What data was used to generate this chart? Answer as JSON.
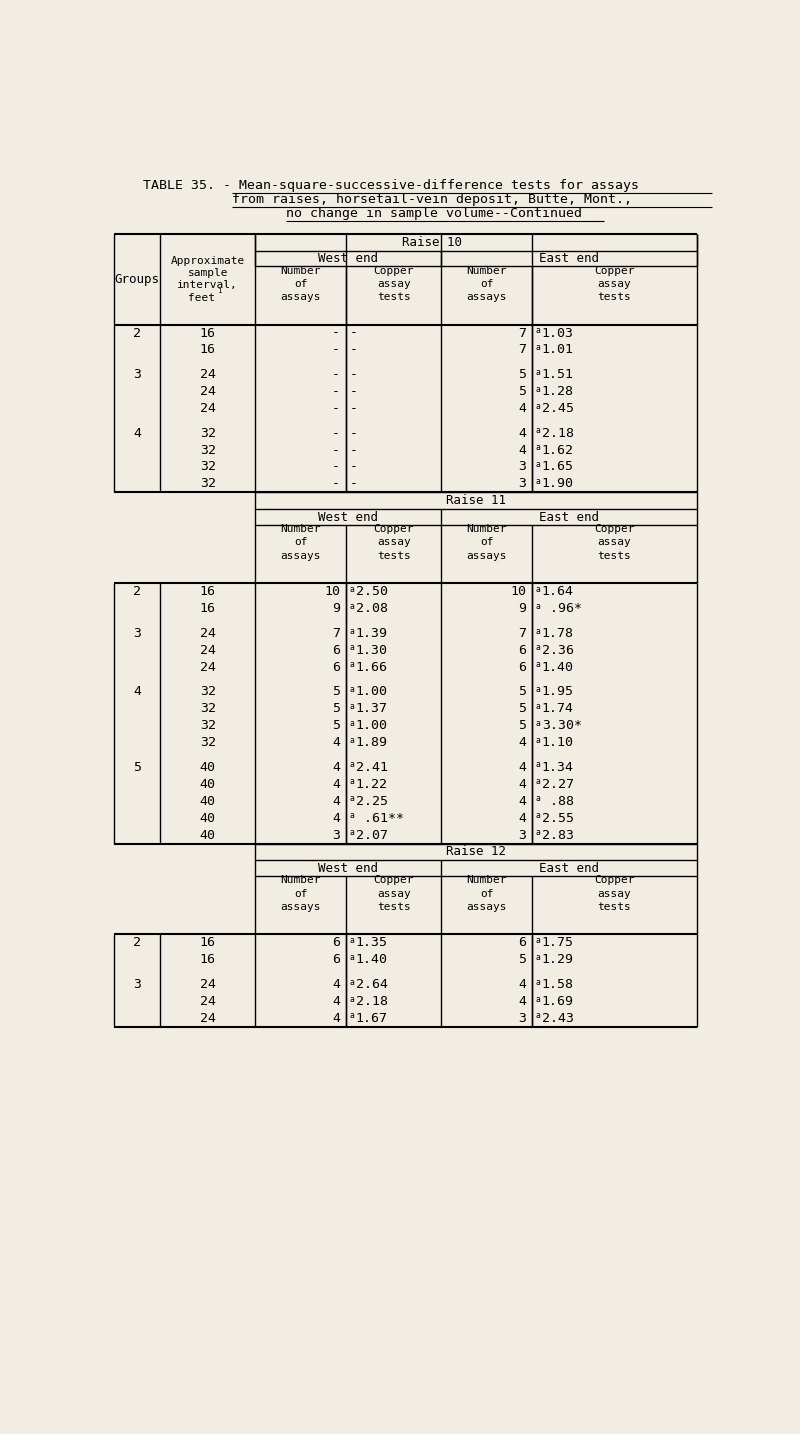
{
  "title_line1": "TABLE 35. - Mean-square-successive-difference tests for assays",
  "title_line2": "from raises, horsetail-vein deposit, Butte, Mont.,",
  "title_line3": "no change in sample volume--Continued",
  "bg": "#f2ede3",
  "sections": [
    {
      "raise_label": "Raise 10",
      "groups": [
        {
          "group": "2",
          "rows": [
            {
              "interval": "16",
              "w_num": "-",
              "w_cop": "-",
              "e_num": "7",
              "e_cop": "a1.03"
            },
            {
              "interval": "16",
              "w_num": "-",
              "w_cop": "-",
              "e_num": "7",
              "e_cop": "a1.01"
            }
          ]
        },
        {
          "group": "3",
          "rows": [
            {
              "interval": "24",
              "w_num": "-",
              "w_cop": "-",
              "e_num": "5",
              "e_cop": "a1.51"
            },
            {
              "interval": "24",
              "w_num": "-",
              "w_cop": "-",
              "e_num": "5",
              "e_cop": "a1.28"
            },
            {
              "interval": "24",
              "w_num": "-",
              "w_cop": "-",
              "e_num": "4",
              "e_cop": "a2.45"
            }
          ]
        },
        {
          "group": "4",
          "rows": [
            {
              "interval": "32",
              "w_num": "-",
              "w_cop": "-",
              "e_num": "4",
              "e_cop": "a2.18"
            },
            {
              "interval": "32",
              "w_num": "-",
              "w_cop": "-",
              "e_num": "4",
              "e_cop": "a1.62"
            },
            {
              "interval": "32",
              "w_num": "-",
              "w_cop": "-",
              "e_num": "3",
              "e_cop": "a1.65"
            },
            {
              "interval": "32",
              "w_num": "-",
              "w_cop": "-",
              "e_num": "3",
              "e_cop": "a1.90"
            }
          ]
        }
      ]
    },
    {
      "raise_label": "Raise 11",
      "groups": [
        {
          "group": "2",
          "rows": [
            {
              "interval": "16",
              "w_num": "10",
              "w_cop": "a2.50",
              "e_num": "10",
              "e_cop": "a1.64"
            },
            {
              "interval": "16",
              "w_num": "9",
              "w_cop": "a2.08",
              "e_num": "9",
              "e_cop": "a .96*"
            }
          ]
        },
        {
          "group": "3",
          "rows": [
            {
              "interval": "24",
              "w_num": "7",
              "w_cop": "a1.39",
              "e_num": "7",
              "e_cop": "a1.78"
            },
            {
              "interval": "24",
              "w_num": "6",
              "w_cop": "a1.30",
              "e_num": "6",
              "e_cop": "a2.36"
            },
            {
              "interval": "24",
              "w_num": "6",
              "w_cop": "a1.66",
              "e_num": "6",
              "e_cop": "a1.40"
            }
          ]
        },
        {
          "group": "4",
          "rows": [
            {
              "interval": "32",
              "w_num": "5",
              "w_cop": "a1.00",
              "e_num": "5",
              "e_cop": "a1.95"
            },
            {
              "interval": "32",
              "w_num": "5",
              "w_cop": "a1.37",
              "e_num": "5",
              "e_cop": "a1.74"
            },
            {
              "interval": "32",
              "w_num": "5",
              "w_cop": "a1.00",
              "e_num": "5",
              "e_cop": "a3.30*"
            },
            {
              "interval": "32",
              "w_num": "4",
              "w_cop": "a1.89",
              "e_num": "4",
              "e_cop": "a1.10"
            }
          ]
        },
        {
          "group": "5",
          "rows": [
            {
              "interval": "40",
              "w_num": "4",
              "w_cop": "a2.41",
              "e_num": "4",
              "e_cop": "a1.34"
            },
            {
              "interval": "40",
              "w_num": "4",
              "w_cop": "a1.22",
              "e_num": "4",
              "e_cop": "a2.27"
            },
            {
              "interval": "40",
              "w_num": "4",
              "w_cop": "a2.25",
              "e_num": "4",
              "e_cop": "a .88"
            },
            {
              "interval": "40",
              "w_num": "4",
              "w_cop": "a .61**",
              "e_num": "4",
              "e_cop": "a2.55"
            },
            {
              "interval": "40",
              "w_num": "3",
              "w_cop": "a2.07",
              "e_num": "3",
              "e_cop": "a2.83"
            }
          ]
        }
      ]
    },
    {
      "raise_label": "Raise 12",
      "groups": [
        {
          "group": "2",
          "rows": [
            {
              "interval": "16",
              "w_num": "6",
              "w_cop": "a1.35",
              "e_num": "6",
              "e_cop": "a1.75"
            },
            {
              "interval": "16",
              "w_num": "6",
              "w_cop": "a1.40",
              "e_num": "5",
              "e_cop": "a1.29"
            }
          ]
        },
        {
          "group": "3",
          "rows": [
            {
              "interval": "24",
              "w_num": "4",
              "w_cop": "a2.64",
              "e_num": "4",
              "e_cop": "a1.58"
            },
            {
              "interval": "24",
              "w_num": "4",
              "w_cop": "a2.18",
              "e_num": "4",
              "e_cop": "a1.69"
            },
            {
              "interval": "24",
              "w_num": "4",
              "w_cop": "a1.67",
              "e_num": "3",
              "e_cop": "a2.43"
            }
          ]
        }
      ]
    }
  ]
}
